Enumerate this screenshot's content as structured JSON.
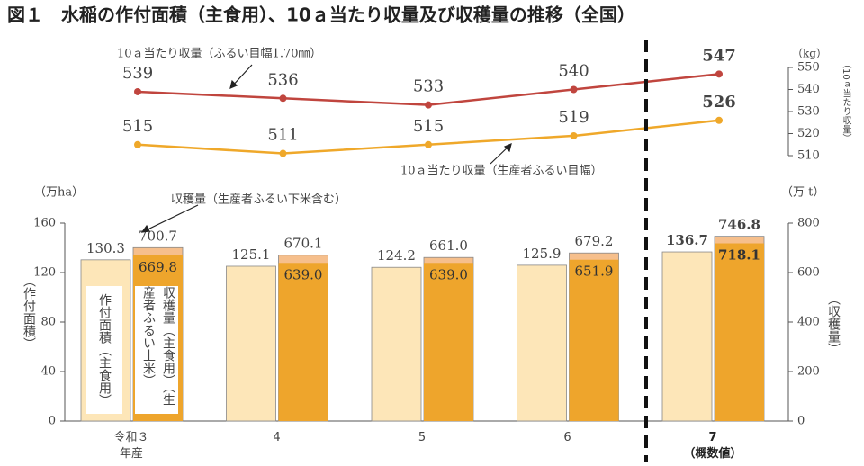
{
  "chart_data": {
    "type": "bar-line",
    "title": "図１　水稲の作付面積（主食用）、10ａ当たり収量及び収穫量の推移（全国）",
    "categories": [
      "令和３\n年産",
      "4",
      "5",
      "6",
      "7\n（概数値）"
    ],
    "line": {
      "unit": "（kg）",
      "ylabel": "（10ａ当たり収量）",
      "ylim": [
        510,
        550
      ],
      "yticks": [
        510,
        520,
        530,
        540,
        550
      ],
      "series": [
        {
          "name": "10ａ当たり収量（ふるい目幅1.70㎜）",
          "color": "#c0453e",
          "values": [
            539,
            536,
            533,
            540,
            547
          ]
        },
        {
          "name": "10ａ当たり収量（生産者ふるい目幅）",
          "color": "#efa82a",
          "values": [
            515,
            511,
            515,
            519,
            526
          ]
        }
      ]
    },
    "bars": {
      "yunit": "（万ha）",
      "ylabel": "（作付面積）",
      "ylim": [
        0,
        160
      ],
      "yticks": [
        0,
        40,
        80,
        120,
        160
      ],
      "y2unit": "（万 t）",
      "y2label": "（収穫量）",
      "y2lim": [
        0,
        800
      ],
      "y2ticks": [
        0,
        200,
        400,
        600,
        800
      ],
      "series": [
        {
          "name": "作付面積（主食用）",
          "color": "#fde6b8",
          "values": [
            130.3,
            125.1,
            124.2,
            125.9,
            136.7
          ]
        },
        {
          "name": "収穫量（生産者ふるい下米含む）",
          "axis": "y2",
          "color": "#f6bf8c",
          "values": [
            700.7,
            670.1,
            661.0,
            679.2,
            746.8
          ],
          "value_labels": [
            "700.7",
            "670.1",
            "661.0",
            "679.2",
            "746.8"
          ]
        },
        {
          "name": "収穫量（主食用）（生産者ふるい上米）",
          "axis": "y2",
          "color": "#eea52c",
          "values": [
            669.8,
            639.0,
            639.0,
            651.9,
            718.1
          ],
          "value_labels": [
            "669.8",
            "639.0",
            "639.0",
            "651.9",
            "718.1"
          ]
        }
      ]
    }
  }
}
